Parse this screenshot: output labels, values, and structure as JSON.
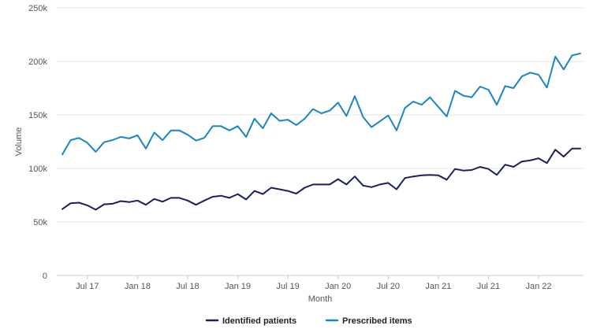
{
  "chart_data": {
    "type": "line",
    "xlabel": "Month",
    "ylabel": "Volume",
    "ylim": [
      0,
      250000
    ],
    "y_ticks": [
      {
        "value": 0,
        "label": "0"
      },
      {
        "value": 50000,
        "label": "50k"
      },
      {
        "value": 100000,
        "label": "100k"
      },
      {
        "value": 150000,
        "label": "150k"
      },
      {
        "value": 200000,
        "label": "200k"
      },
      {
        "value": 250000,
        "label": "250k"
      }
    ],
    "x_ticks": [
      {
        "index": 3,
        "label": "Jul 17"
      },
      {
        "index": 9,
        "label": "Jan 18"
      },
      {
        "index": 15,
        "label": "Jul 18"
      },
      {
        "index": 21,
        "label": "Jan 19"
      },
      {
        "index": 27,
        "label": "Jul 19"
      },
      {
        "index": 33,
        "label": "Jan 20"
      },
      {
        "index": 39,
        "label": "Jul 20"
      },
      {
        "index": 45,
        "label": "Jan 21"
      },
      {
        "index": 51,
        "label": "Jul 21"
      },
      {
        "index": 57,
        "label": "Jan 22"
      }
    ],
    "categories": [
      "Apr 17",
      "May 17",
      "Jun 17",
      "Jul 17",
      "Aug 17",
      "Sep 17",
      "Oct 17",
      "Nov 17",
      "Dec 17",
      "Jan 18",
      "Feb 18",
      "Mar 18",
      "Apr 18",
      "May 18",
      "Jun 18",
      "Jul 18",
      "Aug 18",
      "Sep 18",
      "Oct 18",
      "Nov 18",
      "Dec 18",
      "Jan 19",
      "Feb 19",
      "Mar 19",
      "Apr 19",
      "May 19",
      "Jun 19",
      "Jul 19",
      "Aug 19",
      "Sep 19",
      "Oct 19",
      "Nov 19",
      "Dec 19",
      "Jan 20",
      "Feb 20",
      "Mar 20",
      "Apr 20",
      "May 20",
      "Jun 20",
      "Jul 20",
      "Aug 20",
      "Sep 20",
      "Oct 20",
      "Nov 20",
      "Dec 20",
      "Jan 21",
      "Feb 21",
      "Mar 21",
      "Apr 21",
      "May 21",
      "Jun 21",
      "Jul 21",
      "Aug 21",
      "Sep 21",
      "Oct 21",
      "Nov 21",
      "Dec 21",
      "Jan 22",
      "Feb 22",
      "Mar 22",
      "Apr 22",
      "May 22",
      "Jun 22"
    ],
    "series": [
      {
        "name": "Identified patients",
        "color": "#1a1f5e",
        "values": [
          62000,
          67500,
          68000,
          65500,
          61500,
          66500,
          67000,
          69500,
          68500,
          70000,
          66000,
          71500,
          69000,
          72500,
          72500,
          70000,
          66000,
          70000,
          73500,
          74500,
          72500,
          76000,
          71000,
          79000,
          76000,
          82000,
          80500,
          79000,
          76500,
          82000,
          85000,
          85000,
          85000,
          90000,
          85000,
          92500,
          84000,
          82500,
          85000,
          86500,
          80500,
          91000,
          92500,
          93500,
          94000,
          93500,
          89500,
          99500,
          98000,
          98500,
          101500,
          99500,
          94000,
          103500,
          101500,
          106500,
          107500,
          109500,
          105000,
          117500,
          111000,
          118500,
          118500
        ]
      },
      {
        "name": "Prescribed items",
        "color": "#1a86c0",
        "values": [
          113000,
          126500,
          128500,
          124000,
          115500,
          124500,
          126500,
          129500,
          128000,
          131000,
          118500,
          133500,
          126500,
          135500,
          135500,
          131500,
          126000,
          128500,
          139500,
          139500,
          135500,
          139500,
          129500,
          146500,
          137500,
          151500,
          144500,
          145500,
          140500,
          146500,
          155500,
          151500,
          154000,
          161500,
          149000,
          167500,
          148000,
          138500,
          144000,
          149500,
          135500,
          156500,
          162500,
          159500,
          166500,
          157500,
          148500,
          172500,
          168000,
          166500,
          176500,
          173500,
          159500,
          177000,
          175000,
          186000,
          189500,
          187500,
          175500,
          204500,
          192500,
          205500,
          207500
        ]
      }
    ],
    "legend": {
      "position": "bottom-center",
      "items": [
        {
          "label": "Identified patients",
          "color": "#1a1f5e"
        },
        {
          "label": "Prescribed items",
          "color": "#1a86c0"
        }
      ]
    },
    "grid": {
      "y": true,
      "x": false
    }
  }
}
